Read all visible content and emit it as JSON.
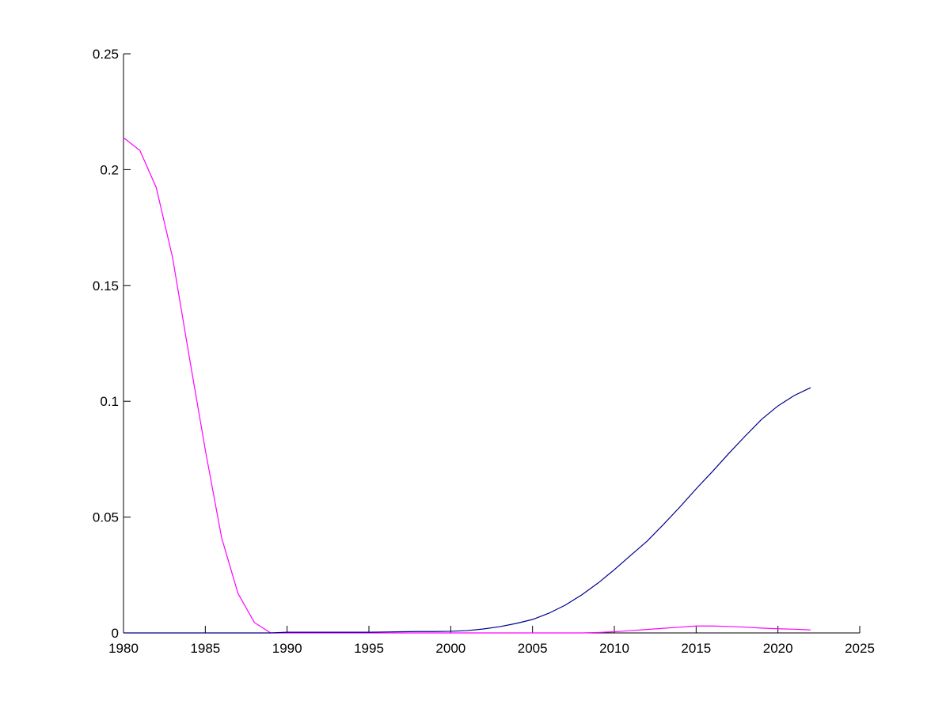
{
  "chart_data": {
    "type": "line",
    "x": [
      1980,
      1981,
      1982,
      1983,
      1984,
      1985,
      1986,
      1987,
      1988,
      1989,
      1990,
      1991,
      1992,
      1993,
      1994,
      1995,
      1996,
      1997,
      1998,
      1999,
      2000,
      2001,
      2002,
      2003,
      2004,
      2005,
      2006,
      2007,
      2008,
      2009,
      2010,
      2011,
      2012,
      2013,
      2014,
      2015,
      2016,
      2017,
      2018,
      2019,
      2020,
      2021,
      2022
    ],
    "series": [
      {
        "color": "#ff00ff",
        "values": [
          0.2138,
          0.2083,
          0.1923,
          0.162,
          0.12,
          0.079,
          0.041,
          0.017,
          0.0045,
          0,
          0,
          0,
          0,
          0,
          0,
          0,
          0,
          0,
          0,
          0,
          0,
          0,
          0,
          0,
          0,
          0,
          0,
          0,
          0,
          0.0002,
          0.0005,
          0.001,
          0.0015,
          0.002,
          0.0025,
          0.003,
          0.003,
          0.0028,
          0.0025,
          0.0021,
          0.0018,
          0.0016,
          0.0013
        ]
      },
      {
        "color": "#00008b",
        "values": [
          0,
          0,
          0,
          0,
          0,
          0,
          0,
          0,
          0,
          0,
          0.0003,
          0.0003,
          0.0003,
          0.0003,
          0.0003,
          0.0003,
          0.0004,
          0.0005,
          0.0006,
          0.0006,
          0.0007,
          0.001,
          0.0017,
          0.0027,
          0.0041,
          0.0058,
          0.0085,
          0.012,
          0.0164,
          0.0215,
          0.0273,
          0.0335,
          0.0396,
          0.0468,
          0.0543,
          0.0622,
          0.0697,
          0.0775,
          0.085,
          0.0922,
          0.098,
          0.1025,
          0.1059
        ]
      }
    ],
    "xlim": [
      1980,
      2025
    ],
    "xticks": [
      1980,
      1985,
      1990,
      1995,
      2000,
      2005,
      2010,
      2015,
      2020,
      2025
    ],
    "ylim": [
      0,
      0.25
    ],
    "yticks": [
      0,
      0.05,
      0.1,
      0.15,
      0.2,
      0.25
    ],
    "grid": false
  }
}
